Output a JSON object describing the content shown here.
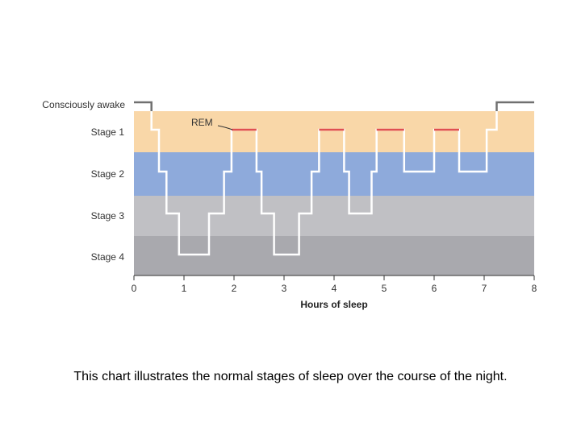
{
  "chart_data": {
    "type": "line",
    "xlabel": "Hours of sleep",
    "ylabel": "",
    "xlim": [
      0,
      8
    ],
    "x_ticks": [
      "0",
      "1",
      "2",
      "3",
      "4",
      "5",
      "6",
      "7",
      "8"
    ],
    "stage_labels": [
      "Consciously awake",
      "Stage 1",
      "Stage 2",
      "Stage 3",
      "Stage 4"
    ],
    "stage_band_colors": {
      "Stage 1": "#f9d7a8",
      "Stage 2": "#8eaadb",
      "Stage 3": "#c0c0c4",
      "Stage 4": "#a9a9ae"
    },
    "line_colors": {
      "awake": "#707070",
      "sleep": "#ffffff",
      "rem": "#e05050"
    },
    "annotation": "REM",
    "series": [
      {
        "steps": [
          [
            0.0,
            0.35,
            "Consciously awake"
          ],
          [
            0.35,
            0.5,
            "Stage 1"
          ],
          [
            0.5,
            0.65,
            "Stage 2"
          ],
          [
            0.65,
            0.9,
            "Stage 3"
          ],
          [
            0.9,
            1.5,
            "Stage 4"
          ],
          [
            1.5,
            1.8,
            "Stage 3"
          ],
          [
            1.8,
            1.95,
            "Stage 2"
          ],
          [
            1.95,
            2.45,
            "Stage 1"
          ],
          [
            2.45,
            2.55,
            "Stage 2"
          ],
          [
            2.55,
            2.8,
            "Stage 3"
          ],
          [
            2.8,
            3.3,
            "Stage 4"
          ],
          [
            3.3,
            3.55,
            "Stage 3"
          ],
          [
            3.55,
            3.7,
            "Stage 2"
          ],
          [
            3.7,
            4.2,
            "Stage 1"
          ],
          [
            4.2,
            4.3,
            "Stage 2"
          ],
          [
            4.3,
            4.75,
            "Stage 3"
          ],
          [
            4.75,
            4.85,
            "Stage 2"
          ],
          [
            4.85,
            5.4,
            "Stage 1"
          ],
          [
            5.4,
            6.0,
            "Stage 2"
          ],
          [
            6.0,
            6.5,
            "Stage 1"
          ],
          [
            6.5,
            7.05,
            "Stage 2"
          ],
          [
            7.05,
            7.25,
            "Stage 1"
          ],
          [
            7.25,
            8.0,
            "Consciously awake"
          ]
        ],
        "rem_periods": [
          [
            1.95,
            2.45
          ],
          [
            3.7,
            4.2
          ],
          [
            4.85,
            5.4
          ],
          [
            6.0,
            6.5
          ]
        ]
      }
    ]
  },
  "caption": "This chart illustrates the normal stages of sleep over the course of the night."
}
